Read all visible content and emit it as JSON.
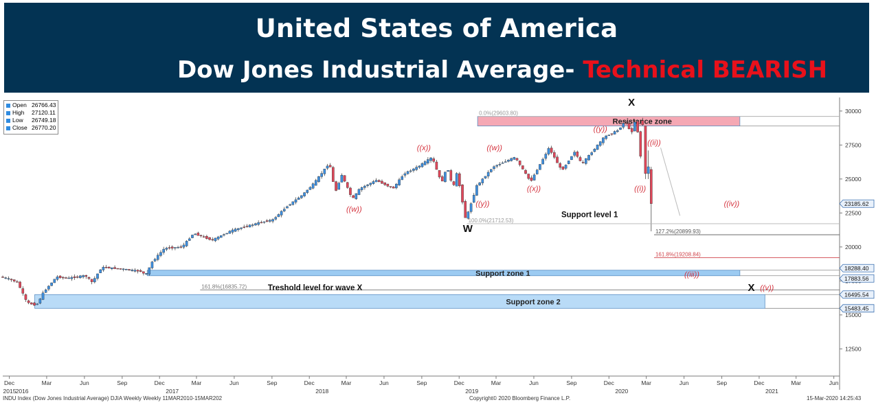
{
  "header": {
    "title": "United States of America",
    "subtitle": "Dow Jones Industrial Average-",
    "subtitle_highlight": "Technical BEARISH",
    "bg_color": "#033353",
    "highlight_color": "#e8111b"
  },
  "ohlc_box": {
    "items": [
      {
        "label": "Open",
        "value": "26766.43"
      },
      {
        "label": "High",
        "value": "27120.11"
      },
      {
        "label": "Low",
        "value": "26749.18"
      },
      {
        "label": "Close",
        "value": "26770.20"
      }
    ]
  },
  "footer": {
    "left": "INDU Index (Dow Jones Industrial Average) DJIA Weekly  Weekly 11MAR2010-15MAR202",
    "center": "Copyright© 2020 Bloomberg Finance L.P.",
    "right": "15-Mar-2020 14:25:43"
  },
  "chart_data": {
    "type": "candlestick",
    "period": "Weekly",
    "title": "",
    "xlabel": "",
    "ylabel": "",
    "x_range": [
      "2015-11-15",
      "2021-06-15"
    ],
    "ylim": [
      10500,
      31000
    ],
    "grid": false,
    "y_ticks": [
      12500,
      15000,
      17500,
      20000,
      22500,
      25000,
      27500,
      30000
    ],
    "x_ticks": [
      {
        "date": "2015-12-01",
        "label": "Dec"
      },
      {
        "date": "2016-03-01",
        "label": "Mar"
      },
      {
        "date": "2016-06-01",
        "label": "Jun"
      },
      {
        "date": "2016-09-01",
        "label": "Sep"
      },
      {
        "date": "2016-12-01",
        "label": "Dec"
      },
      {
        "date": "2017-03-01",
        "label": "Mar"
      },
      {
        "date": "2017-06-01",
        "label": "Jun"
      },
      {
        "date": "2017-09-01",
        "label": "Sep"
      },
      {
        "date": "2017-12-01",
        "label": "Dec"
      },
      {
        "date": "2018-03-01",
        "label": "Mar"
      },
      {
        "date": "2018-06-01",
        "label": "Jun"
      },
      {
        "date": "2018-09-01",
        "label": "Sep"
      },
      {
        "date": "2018-12-01",
        "label": "Dec"
      },
      {
        "date": "2019-03-01",
        "label": "Mar"
      },
      {
        "date": "2019-06-01",
        "label": "Jun"
      },
      {
        "date": "2019-09-01",
        "label": "Sep"
      },
      {
        "date": "2019-12-01",
        "label": "Dec"
      },
      {
        "date": "2020-03-01",
        "label": "Mar"
      },
      {
        "date": "2020-06-01",
        "label": "Jun"
      },
      {
        "date": "2020-09-01",
        "label": "Sep"
      },
      {
        "date": "2020-12-01",
        "label": "Dec"
      },
      {
        "date": "2021-03-01",
        "label": "Mar"
      },
      {
        "date": "2021-06-01",
        "label": "Jun"
      }
    ],
    "year_labels": [
      {
        "date": "2015-01-01",
        "label": "2015"
      },
      {
        "date": "2016-01-01",
        "label": "2016"
      },
      {
        "date": "2017-01-01",
        "label": "2017"
      },
      {
        "date": "2018-01-01",
        "label": "2018"
      },
      {
        "date": "2019-01-01",
        "label": "2019"
      },
      {
        "date": "2020-01-01",
        "label": "2020"
      },
      {
        "date": "2021-01-01",
        "label": "2021"
      }
    ],
    "price_path": [
      [
        "2015-11-15",
        17800
      ],
      [
        "2015-12-01",
        17700
      ],
      [
        "2015-12-28",
        17400
      ],
      [
        "2016-01-20",
        15900
      ],
      [
        "2016-02-12",
        15700
      ],
      [
        "2016-03-01",
        16700
      ],
      [
        "2016-04-01",
        17800
      ],
      [
        "2016-05-01",
        17700
      ],
      [
        "2016-06-10",
        17900
      ],
      [
        "2016-06-27",
        17400
      ],
      [
        "2016-07-20",
        18500
      ],
      [
        "2016-09-01",
        18400
      ],
      [
        "2016-10-25",
        18200
      ],
      [
        "2016-11-04",
        17900
      ],
      [
        "2016-11-20",
        18900
      ],
      [
        "2016-12-20",
        19900
      ],
      [
        "2017-02-01",
        20000
      ],
      [
        "2017-03-01",
        21000
      ],
      [
        "2017-04-15",
        20500
      ],
      [
        "2017-06-01",
        21200
      ],
      [
        "2017-08-10",
        21800
      ],
      [
        "2017-09-10",
        22000
      ],
      [
        "2017-10-15",
        23000
      ],
      [
        "2017-11-20",
        23800
      ],
      [
        "2017-12-20",
        24700
      ],
      [
        "2018-01-26",
        26200
      ],
      [
        "2018-02-09",
        24000
      ],
      [
        "2018-02-25",
        25300
      ],
      [
        "2018-03-23",
        23500
      ],
      [
        "2018-04-10",
        24300
      ],
      [
        "2018-05-20",
        24900
      ],
      [
        "2018-06-30",
        24300
      ],
      [
        "2018-07-27",
        25400
      ],
      [
        "2018-08-30",
        25900
      ],
      [
        "2018-10-03",
        26600
      ],
      [
        "2018-10-26",
        24700
      ],
      [
        "2018-11-09",
        25900
      ],
      [
        "2018-11-23",
        24300
      ],
      [
        "2018-12-03",
        25500
      ],
      [
        "2018-12-24",
        22000
      ],
      [
        "2019-01-20",
        24500
      ],
      [
        "2019-03-01",
        25900
      ],
      [
        "2019-04-23",
        26600
      ],
      [
        "2019-05-31",
        24800
      ],
      [
        "2019-07-15",
        27300
      ],
      [
        "2019-08-15",
        25600
      ],
      [
        "2019-09-15",
        27000
      ],
      [
        "2019-10-03",
        26100
      ],
      [
        "2019-11-27",
        28100
      ],
      [
        "2019-12-31",
        28600
      ],
      [
        "2020-01-17",
        29300
      ],
      [
        "2020-01-31",
        28300
      ],
      [
        "2020-02-12",
        29500
      ],
      [
        "2020-02-28",
        25400
      ],
      [
        "2020-03-06",
        25900
      ],
      [
        "2020-03-13",
        23185
      ]
    ],
    "last_candles": [
      {
        "date": "2020-02-21",
        "open": 29300,
        "high": 29500,
        "low": 28900,
        "close": 29000
      },
      {
        "date": "2020-02-28",
        "open": 28900,
        "high": 28900,
        "low": 25000,
        "close": 25400
      },
      {
        "date": "2020-03-06",
        "open": 25400,
        "high": 27100,
        "low": 25000,
        "close": 25900
      },
      {
        "date": "2020-03-13",
        "open": 25700,
        "high": 25900,
        "low": 21150,
        "close": 23185
      }
    ],
    "price_labels": [
      "29603.80",
      "23185.62",
      "18288.40",
      "17883.56",
      "16495.54",
      "15483.45"
    ],
    "fib_levels": [
      {
        "label": "0.0%(29603.80)",
        "value": 29603.8,
        "start": "2019-01-15"
      },
      {
        "label": "100.0%(21712.53)",
        "value": 21712.53,
        "start": "2018-12-20"
      },
      {
        "label": "127.2%(20899.93)",
        "value": 20899.93,
        "start": "2020-03-20",
        "color": "#555555"
      },
      {
        "label": "161.8%(19208.84)",
        "value": 19208.84,
        "start": "2020-03-20",
        "color": "#d0454c"
      },
      {
        "label": "161.8%(16835.72)",
        "value": 16835.72,
        "start": "2017-03-10",
        "color": "#777777"
      }
    ],
    "zones": [
      {
        "label": "Resistance zone",
        "y1": 28900,
        "y2": 29603.8,
        "x1": "2019-01-15",
        "x2": "2020-10-15",
        "color": "#f5a8b4"
      },
      {
        "label": "Support zone 1",
        "y1": 17883.56,
        "y2": 18288.4,
        "x1": "2016-11-01",
        "x2": "2020-10-15",
        "color": "#9ccbf2"
      },
      {
        "label": "Support zone  2",
        "y1": 15483.45,
        "y2": 16495.54,
        "x1": "2016-02-01",
        "x2": "2020-12-15",
        "color": "#b9dbf7"
      }
    ],
    "annotations": [
      {
        "text": "X",
        "date": "2020-01-25",
        "value": 30400,
        "style": "big"
      },
      {
        "text": "W",
        "date": "2018-12-22",
        "value": 21100,
        "style": "big"
      },
      {
        "text": "X",
        "date": "2020-11-12",
        "value": 16750,
        "style": "big"
      },
      {
        "text": "((x))",
        "date": "2018-09-06",
        "value": 27100,
        "style": "wave"
      },
      {
        "text": "((w))",
        "date": "2018-03-20",
        "value": 22600,
        "style": "wave"
      },
      {
        "text": "((y))",
        "date": "2019-01-27",
        "value": 23000,
        "style": "wave"
      },
      {
        "text": "((w))",
        "date": "2019-02-25",
        "value": 27100,
        "style": "wave"
      },
      {
        "text": "((x))",
        "date": "2019-06-01",
        "value": 24100,
        "style": "wave"
      },
      {
        "text": "((y))",
        "date": "2019-11-10",
        "value": 28500,
        "style": "wave"
      },
      {
        "text": "((ii))",
        "date": "2020-03-20",
        "value": 27500,
        "style": "wave"
      },
      {
        "text": "((i))",
        "date": "2020-02-15",
        "value": 24100,
        "style": "wave"
      },
      {
        "text": "((iv))",
        "date": "2020-09-25",
        "value": 23000,
        "style": "wave"
      },
      {
        "text": "((iii))",
        "date": "2020-06-20",
        "value": 17800,
        "style": "wave"
      },
      {
        "text": "((v))",
        "date": "2020-12-20",
        "value": 16800,
        "style": "wave"
      },
      {
        "text": "Support level 1",
        "date": "2019-10-15",
        "value": 22200,
        "style": "label"
      },
      {
        "text": "Treshold level for wave X",
        "date": "2017-12-15",
        "value": 16800,
        "style": "label"
      }
    ],
    "projection_line": [
      [
        "2020-04-05",
        27300
      ],
      [
        "2020-05-22",
        22300
      ]
    ],
    "support_level_1": {
      "value": 21712.53
    }
  }
}
